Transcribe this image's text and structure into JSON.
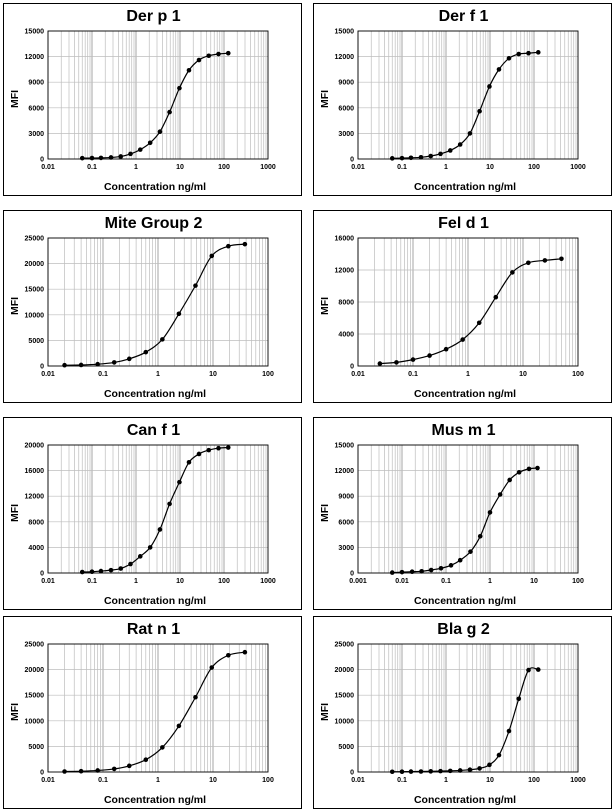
{
  "chart_data": [
    {
      "type": "scatter",
      "title": "Der p 1",
      "xlabel": "Concentration ng/ml",
      "ylabel": "MFI",
      "xscale": "log",
      "xlim": [
        0.01,
        1000
      ],
      "ylim": [
        0,
        15000
      ],
      "xticks": [
        "0.01",
        "0.1",
        "1",
        "10",
        "100",
        "1000"
      ],
      "yticks": [
        "0",
        "3000",
        "6000",
        "9000",
        "12000",
        "15000"
      ],
      "grid": true,
      "series": [
        {
          "x": [
            0.06,
            0.1,
            0.16,
            0.27,
            0.45,
            0.75,
            1.25,
            2.1,
            3.5,
            5.8,
            9.7,
            16,
            27,
            45,
            75,
            125
          ],
          "y": [
            100,
            110,
            130,
            180,
            300,
            600,
            1100,
            1900,
            3200,
            5500,
            8300,
            10400,
            11600,
            12100,
            12300,
            12400
          ]
        }
      ]
    },
    {
      "type": "scatter",
      "title": "Der f 1",
      "xlabel": "Concentration ng/ml",
      "ylabel": "MFI",
      "xscale": "log",
      "xlim": [
        0.01,
        1000
      ],
      "ylim": [
        0,
        15000
      ],
      "xticks": [
        "0.01",
        "0.1",
        "1",
        "10",
        "100",
        "1000"
      ],
      "yticks": [
        "0",
        "3000",
        "6000",
        "9000",
        "12000",
        "15000"
      ],
      "grid": true,
      "series": [
        {
          "x": [
            0.06,
            0.1,
            0.16,
            0.27,
            0.45,
            0.75,
            1.25,
            2.1,
            3.5,
            5.8,
            9.7,
            16,
            27,
            45,
            75,
            125
          ],
          "y": [
            80,
            100,
            140,
            200,
            350,
            600,
            1000,
            1700,
            3000,
            5600,
            8500,
            10500,
            11800,
            12300,
            12400,
            12500
          ]
        }
      ]
    },
    {
      "type": "scatter",
      "title": "Mite Group 2",
      "xlabel": "Concentration ng/ml",
      "ylabel": "MFI",
      "xscale": "log",
      "xlim": [
        0.01,
        100
      ],
      "ylim": [
        0,
        25000
      ],
      "xticks": [
        "0.01",
        "0.1",
        "1",
        "10",
        "100"
      ],
      "yticks": [
        "0",
        "5000",
        "10000",
        "15000",
        "20000",
        "25000"
      ],
      "grid": true,
      "series": [
        {
          "x": [
            0.02,
            0.04,
            0.08,
            0.16,
            0.3,
            0.6,
            1.2,
            2.4,
            4.8,
            9.5,
            19,
            38
          ],
          "y": [
            150,
            200,
            350,
            700,
            1400,
            2700,
            5200,
            10200,
            15700,
            21500,
            23400,
            23800
          ]
        }
      ]
    },
    {
      "type": "scatter",
      "title": "Fel d 1",
      "xlabel": "Concentration ng/ml",
      "ylabel": "MFI",
      "xscale": "log",
      "xlim": [
        0.01,
        100
      ],
      "ylim": [
        0,
        16000
      ],
      "xticks": [
        "0.01",
        "0.1",
        "1",
        "10",
        "100"
      ],
      "yticks": [
        "0",
        "4000",
        "8000",
        "12000",
        "16000"
      ],
      "grid": true,
      "series": [
        {
          "x": [
            0.025,
            0.05,
            0.1,
            0.2,
            0.4,
            0.8,
            1.6,
            3.2,
            6.4,
            12.5,
            25,
            50
          ],
          "y": [
            300,
            450,
            800,
            1300,
            2100,
            3300,
            5400,
            8600,
            11700,
            12900,
            13200,
            13400
          ]
        }
      ]
    },
    {
      "type": "scatter",
      "title": "Can f 1",
      "xlabel": "Concentration ng/ml",
      "ylabel": "MFI",
      "xscale": "log",
      "xlim": [
        0.01,
        1000
      ],
      "ylim": [
        0,
        20000
      ],
      "xticks": [
        "0.01",
        "0.1",
        "1",
        "10",
        "100",
        "1000"
      ],
      "yticks": [
        "0",
        "4000",
        "8000",
        "12000",
        "16000",
        "20000"
      ],
      "grid": true,
      "series": [
        {
          "x": [
            0.06,
            0.1,
            0.16,
            0.27,
            0.45,
            0.75,
            1.25,
            2.1,
            3.5,
            5.8,
            9.7,
            16,
            27,
            45,
            75,
            125
          ],
          "y": [
            150,
            200,
            300,
            450,
            700,
            1400,
            2600,
            4000,
            6800,
            10800,
            14200,
            17300,
            18600,
            19200,
            19500,
            19600
          ]
        }
      ]
    },
    {
      "type": "scatter",
      "title": "Mus m 1",
      "xlabel": "Concentration ng/ml",
      "ylabel": "MFI",
      "xscale": "log",
      "xlim": [
        0.001,
        100
      ],
      "ylim": [
        0,
        15000
      ],
      "xticks": [
        "0.001",
        "0.01",
        "0.1",
        "1",
        "10",
        "100"
      ],
      "yticks": [
        "0",
        "3000",
        "6000",
        "9000",
        "12000",
        "15000"
      ],
      "grid": true,
      "series": [
        {
          "x": [
            0.006,
            0.01,
            0.017,
            0.028,
            0.046,
            0.077,
            0.13,
            0.21,
            0.36,
            0.6,
            1,
            1.7,
            2.8,
            4.6,
            7.7,
            12
          ],
          "y": [
            50,
            100,
            150,
            200,
            350,
            550,
            900,
            1500,
            2500,
            4300,
            7100,
            9200,
            10900,
            11800,
            12200,
            12300
          ]
        }
      ]
    },
    {
      "type": "scatter",
      "title": "Rat n 1",
      "xlabel": "Concentration ng/ml",
      "ylabel": "MFI",
      "xscale": "log",
      "xlim": [
        0.01,
        100
      ],
      "ylim": [
        0,
        25000
      ],
      "xticks": [
        "0.01",
        "0.1",
        "1",
        "10",
        "100"
      ],
      "yticks": [
        "0",
        "5000",
        "10000",
        "15000",
        "20000",
        "25000"
      ],
      "grid": true,
      "series": [
        {
          "x": [
            0.02,
            0.04,
            0.08,
            0.16,
            0.3,
            0.6,
            1.2,
            2.4,
            4.8,
            9.5,
            19,
            38
          ],
          "y": [
            100,
            150,
            300,
            600,
            1200,
            2400,
            4800,
            9000,
            14600,
            20400,
            22800,
            23400
          ]
        }
      ]
    },
    {
      "type": "scatter",
      "title": "Bla g 2",
      "xlabel": "Concentration ng/ml",
      "ylabel": "MFI",
      "xscale": "log",
      "xlim": [
        0.01,
        1000
      ],
      "ylim": [
        0,
        25000
      ],
      "xticks": [
        "0.01",
        "0.1",
        "1",
        "10",
        "100",
        "1000"
      ],
      "yticks": [
        "0",
        "5000",
        "10000",
        "15000",
        "20000",
        "25000"
      ],
      "grid": true,
      "series": [
        {
          "x": [
            0.06,
            0.1,
            0.16,
            0.27,
            0.45,
            0.75,
            1.25,
            2.1,
            3.5,
            5.8,
            9.7,
            16,
            27,
            45,
            75,
            125
          ],
          "y": [
            50,
            60,
            80,
            100,
            130,
            170,
            220,
            300,
            450,
            700,
            1400,
            3300,
            8000,
            14300,
            19900,
            20000
          ]
        }
      ]
    }
  ]
}
